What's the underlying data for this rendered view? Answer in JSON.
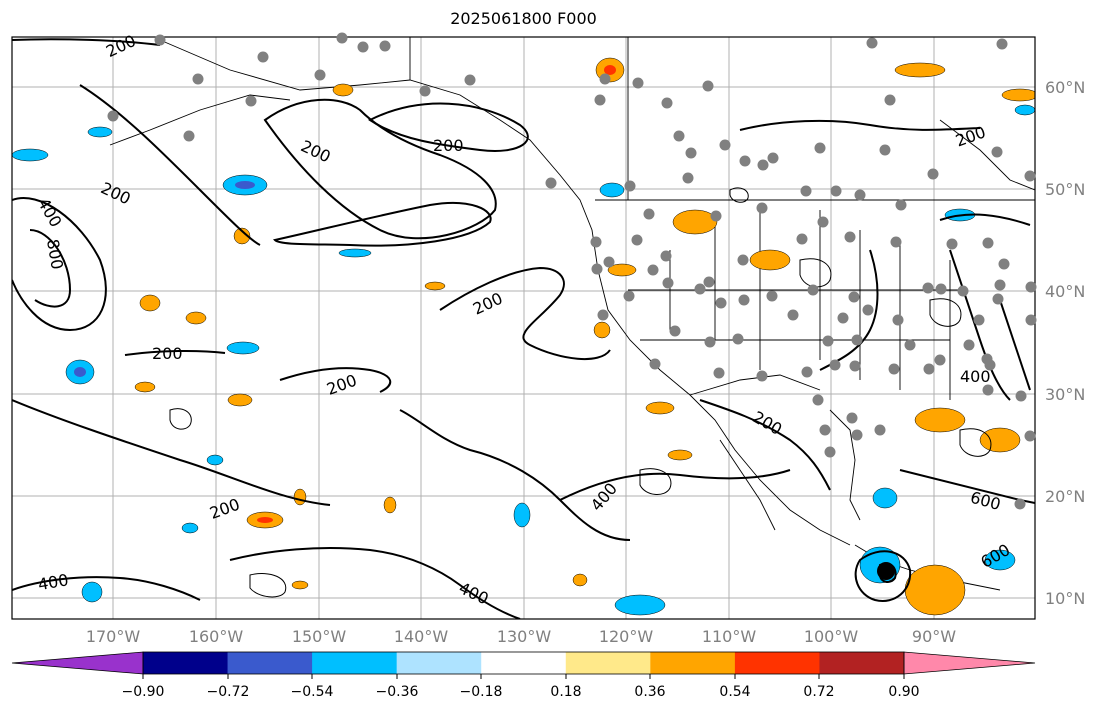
{
  "title": "2025061800 F000",
  "lon_labels": [
    "170°W",
    "160°W",
    "150°W",
    "140°W",
    "130°W",
    "120°W",
    "110°W",
    "100°W",
    "90°W"
  ],
  "lat_labels": [
    "60°N",
    "50°N",
    "40°N",
    "30°N",
    "20°N",
    "10°N"
  ],
  "colorbar": {
    "tick_labels": [
      "−0.90",
      "−0.72",
      "−0.54",
      "−0.36",
      "−0.18",
      "0.18",
      "0.36",
      "0.54",
      "0.72",
      "0.90"
    ],
    "colors": [
      "#9932cc",
      "#00008b",
      "#3a5acd",
      "#00bfff",
      "#aee3ff",
      "#ffffff",
      "#ffe98a",
      "#ffa500",
      "#ff3300",
      "#b22222",
      "#ff88aa"
    ]
  },
  "contour_labels": [
    "200",
    "200",
    "200",
    "200",
    "200",
    "200",
    "200",
    "200",
    "200",
    "200",
    "400",
    "400",
    "400",
    "400",
    "400",
    "600",
    "600",
    "800"
  ]
}
